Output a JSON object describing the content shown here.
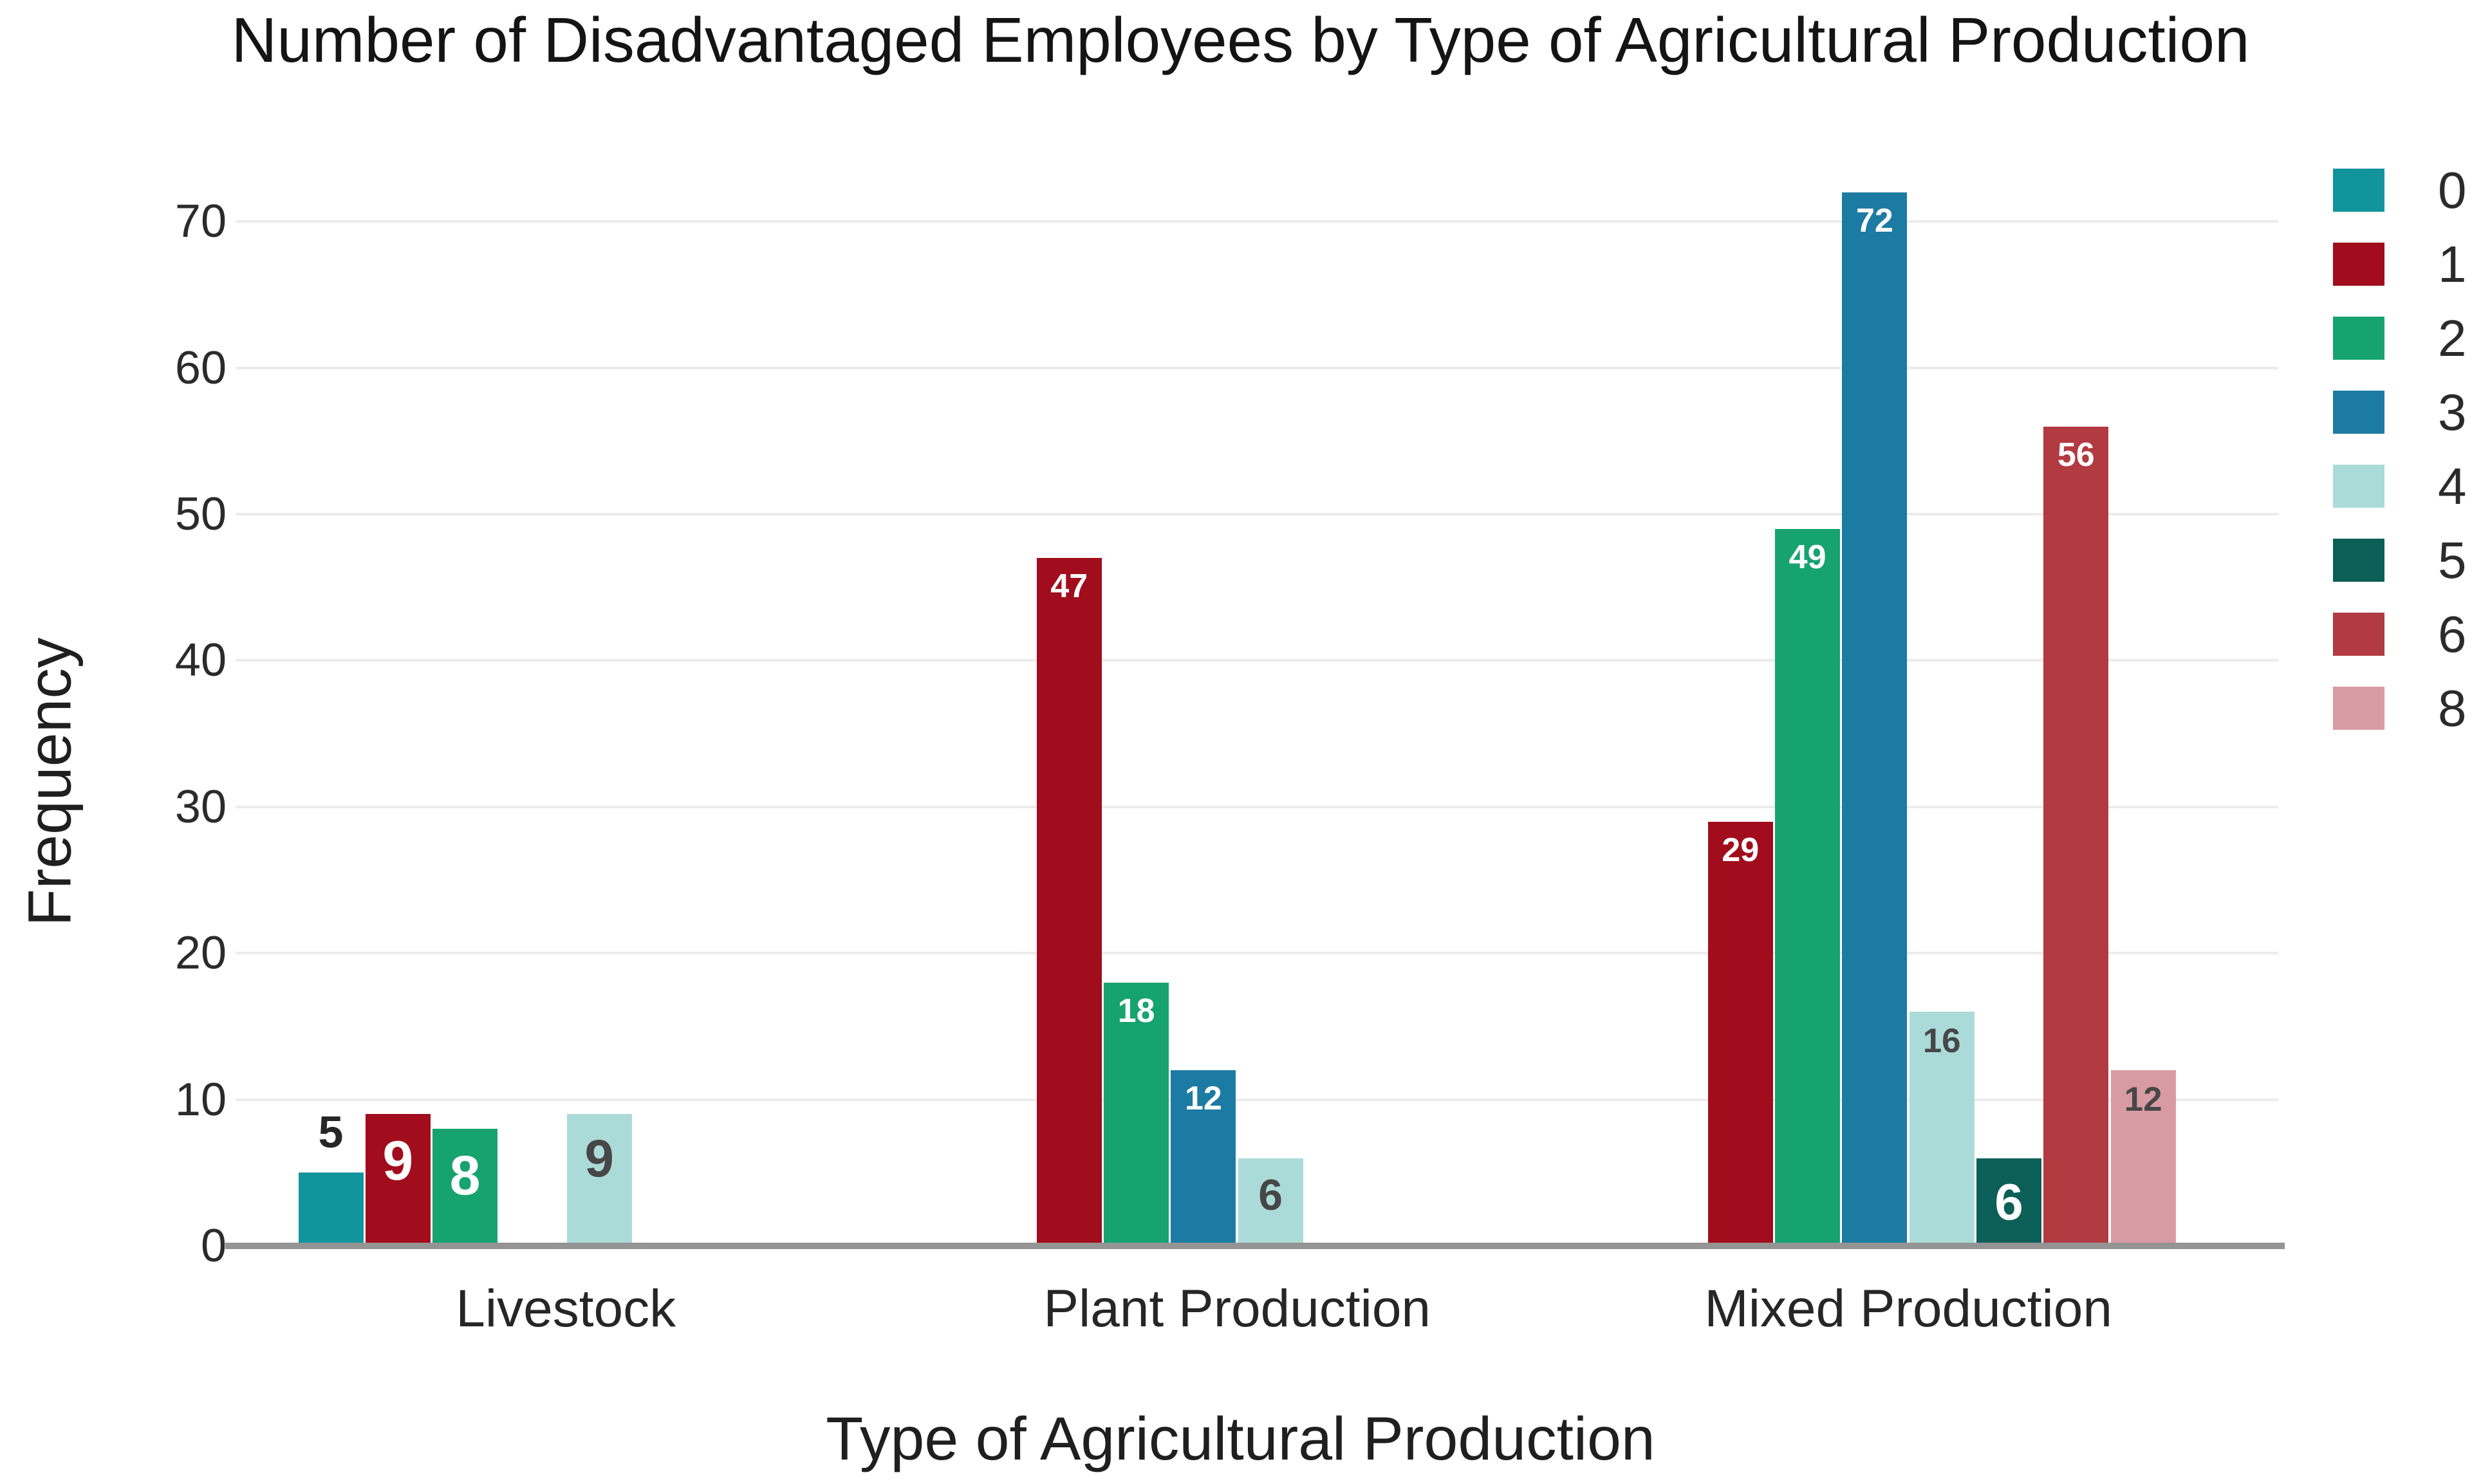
{
  "title": "Number of Disadvantaged Employees by Type of Agricultural Production",
  "x_axis_title": "Type of Agricultural Production",
  "y_axis_title": "Frequency",
  "chart_data": {
    "type": "bar",
    "subtype": "grouped",
    "categories": [
      "Livestock",
      "Plant Production",
      "Mixed Production"
    ],
    "xlabel": "Type of Agricultural Production",
    "ylabel": "Frequency",
    "ylim": [
      0,
      73.5
    ],
    "yticks": [
      "0",
      "10",
      "20",
      "30",
      "40",
      "50",
      "60",
      "70"
    ],
    "grid": "horizontal",
    "legend_position": "upper-right-outside",
    "series": [
      {
        "name": "0",
        "color": "#11949b",
        "values": [
          5,
          0,
          0
        ],
        "labels": [
          {
            "ci": 0,
            "text": "5",
            "pos": "above",
            "tone": "dark",
            "size": 70,
            "color": "#262626"
          }
        ]
      },
      {
        "name": "1",
        "color": "#a10d1c",
        "values": [
          9,
          47,
          29
        ],
        "labels": [
          {
            "ci": 0,
            "text": "9",
            "pos": "in",
            "tone": "light",
            "size": 86
          },
          {
            "ci": 1,
            "text": "47",
            "pos": "in",
            "tone": "light",
            "size": 52
          },
          {
            "ci": 2,
            "text": "29",
            "pos": "in",
            "tone": "light",
            "size": 52
          }
        ]
      },
      {
        "name": "2",
        "color": "#17a36f",
        "values": [
          8,
          18,
          49
        ],
        "labels": [
          {
            "ci": 0,
            "text": "8",
            "pos": "in",
            "tone": "light",
            "size": 86
          },
          {
            "ci": 1,
            "text": "18",
            "pos": "in",
            "tone": "light",
            "size": 52
          },
          {
            "ci": 2,
            "text": "49",
            "pos": "in",
            "tone": "light",
            "size": 52
          }
        ]
      },
      {
        "name": "3",
        "color": "#1b7ba3",
        "values": [
          0,
          12,
          72
        ],
        "labels": [
          {
            "ci": 1,
            "text": "12",
            "pos": "in",
            "tone": "light",
            "size": 52
          },
          {
            "ci": 2,
            "text": "72",
            "pos": "in",
            "tone": "light",
            "size": 52
          }
        ]
      },
      {
        "name": "4",
        "color": "#abdbd9",
        "values": [
          9,
          6,
          16
        ],
        "labels": [
          {
            "ci": 0,
            "text": "9",
            "pos": "in",
            "tone": "dark",
            "size": 82
          },
          {
            "ci": 1,
            "text": "6",
            "pos": "in",
            "tone": "dark",
            "size": 68
          },
          {
            "ci": 2,
            "text": "16",
            "pos": "in",
            "tone": "dark",
            "size": 53
          }
        ]
      },
      {
        "name": "5",
        "color": "#0b5f57",
        "values": [
          0,
          0,
          6
        ],
        "labels": [
          {
            "ci": 2,
            "text": "6",
            "pos": "in",
            "tone": "light",
            "size": 80
          }
        ]
      },
      {
        "name": "6",
        "color": "#b23a41",
        "values": [
          0,
          0,
          56
        ],
        "labels": [
          {
            "ci": 2,
            "text": "56",
            "pos": "in",
            "tone": "light",
            "size": 52
          }
        ]
      },
      {
        "name": "8",
        "color": "#d99ba3",
        "values": [
          0,
          0,
          12
        ],
        "labels": [
          {
            "ci": 2,
            "text": "12",
            "pos": "in",
            "tone": "dark",
            "size": 53
          }
        ]
      }
    ]
  },
  "legend": {
    "entries": [
      {
        "label": "0",
        "color": "#11949b"
      },
      {
        "label": "1",
        "color": "#a10d1c"
      },
      {
        "label": "2",
        "color": "#17a36f"
      },
      {
        "label": "3",
        "color": "#1b7ba3"
      },
      {
        "label": "4",
        "color": "#abdbd9"
      },
      {
        "label": "5",
        "color": "#0b5f57"
      },
      {
        "label": "6",
        "color": "#b23a41"
      },
      {
        "label": "8",
        "color": "#d99ba3"
      }
    ]
  }
}
